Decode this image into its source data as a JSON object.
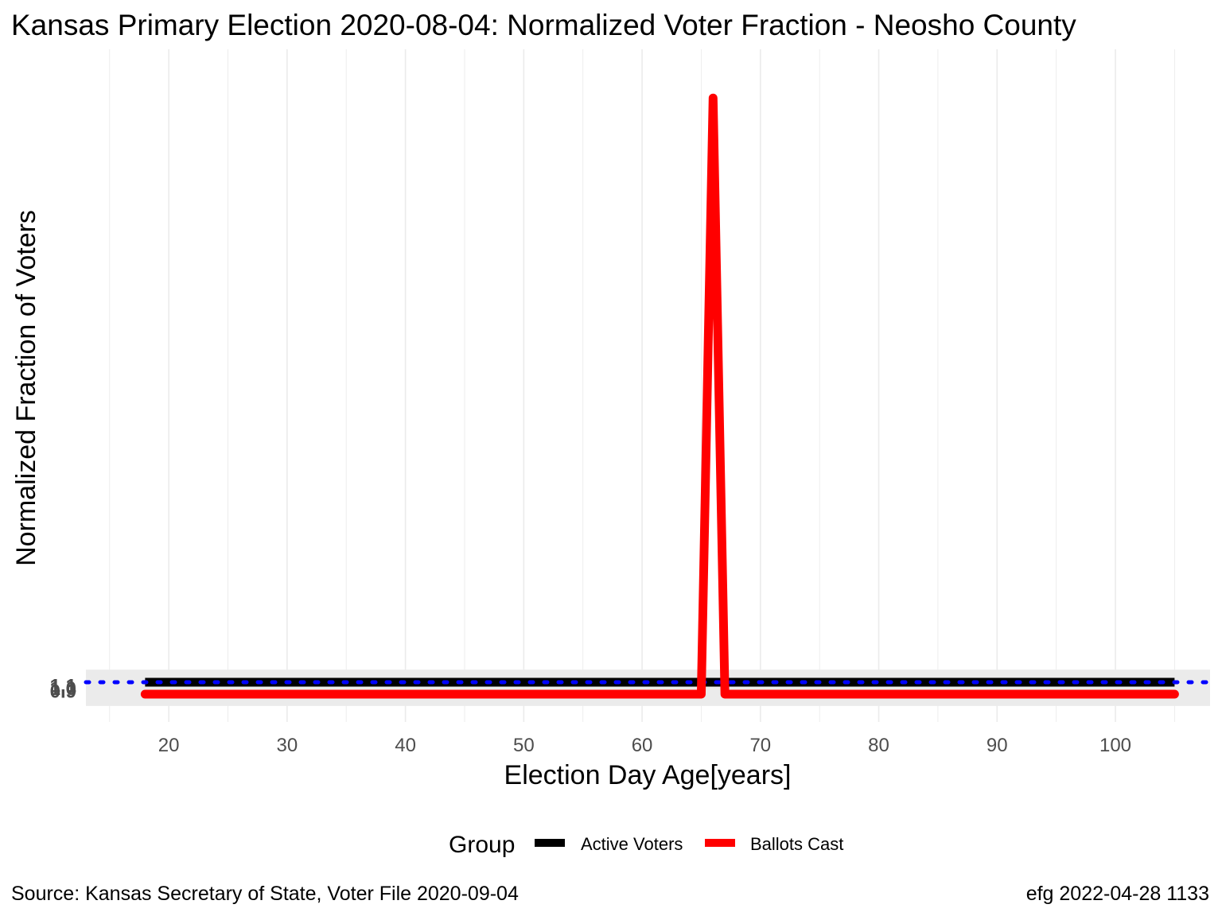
{
  "chart_data": {
    "type": "line",
    "title": "Kansas Primary Election 2020-08-04:  Normalized Voter Fraction - Neosho County",
    "xlabel": "Election Day Age[years]",
    "ylabel": "Normalized Fraction of Voters",
    "xlim": [
      13,
      108
    ],
    "ylim": [
      0.75,
      1.25
    ],
    "x_ticks": [
      20,
      30,
      40,
      50,
      60,
      70,
      80,
      90,
      100
    ],
    "y_ticks": [
      0.9,
      1.0,
      1.1
    ],
    "y_tick_labels": [
      "0.9",
      "1.0",
      "1.1"
    ],
    "legend": {
      "title": "Group",
      "position": "bottom",
      "entries": [
        {
          "label": "Active Voters",
          "color": "#000000"
        },
        {
          "label": "Ballots Cast",
          "color": "#ff0000"
        }
      ]
    },
    "reference_line": {
      "y": 1.0,
      "color": "#0000ff",
      "style": "dotted"
    },
    "series": [
      {
        "name": "Active Voters",
        "color": "#000000",
        "x": [
          18,
          105
        ],
        "y": [
          1.0,
          1.0
        ]
      },
      {
        "name": "Ballots Cast",
        "color": "#ff0000",
        "x": [
          18,
          65,
          66,
          67,
          105
        ],
        "y": [
          0.0,
          0.0,
          24.0,
          0.0,
          0.0
        ]
      }
    ]
  },
  "caption": {
    "source": "Source:  Kansas Secretary of State, Voter File  2020-09-04",
    "credit": "efg 2022-04-28 1133"
  }
}
